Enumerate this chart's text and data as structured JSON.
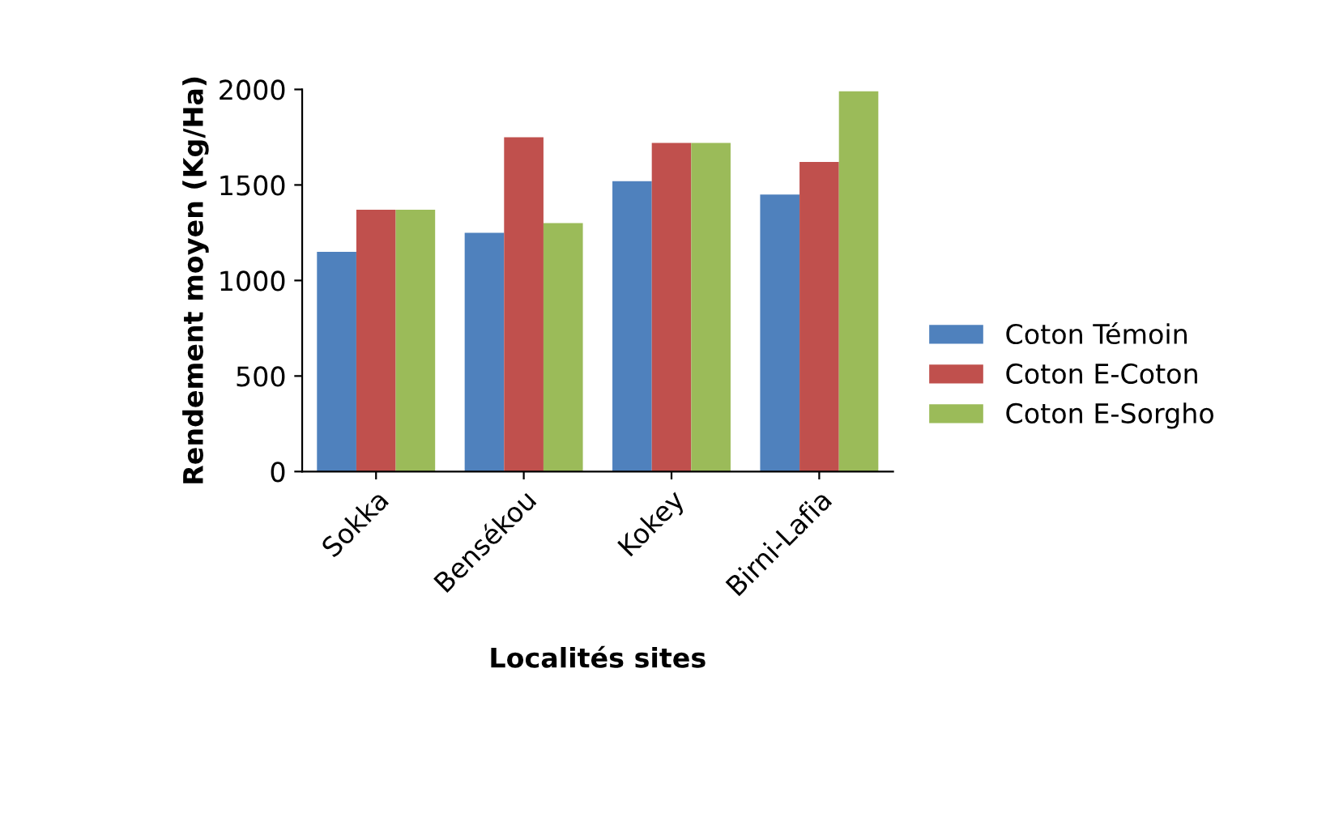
{
  "chart_data": {
    "type": "bar",
    "xlabel": "Localités sites",
    "ylabel": "Rendement moyen (Kg/Ha)",
    "categories": [
      "Sokka",
      "Bensékou",
      "Kokey",
      "Birni-Lafia"
    ],
    "series": [
      {
        "name": "Coton Témoin",
        "color": "#4f81bd",
        "values": [
          1150,
          1250,
          1520,
          1450
        ]
      },
      {
        "name": "Coton E-Coton",
        "color": "#c0504d",
        "values": [
          1370,
          1750,
          1720,
          1620
        ]
      },
      {
        "name": "Coton E-Sorgho",
        "color": "#9bbb59",
        "values": [
          1370,
          1300,
          1720,
          1990
        ]
      }
    ],
    "ylim": [
      0,
      2000
    ],
    "yticks": [
      0,
      500,
      1000,
      1500,
      2000
    ],
    "grid": false,
    "legend": "right"
  }
}
